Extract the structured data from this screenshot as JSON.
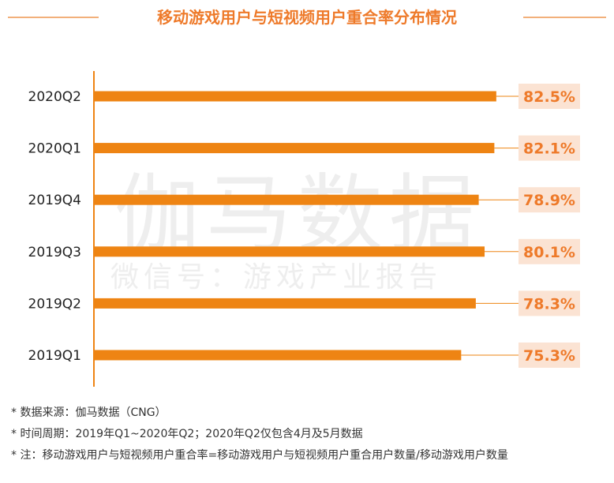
{
  "header": {
    "title": "移动游戏用户与短视频用户重合率分布情况"
  },
  "watermark": {
    "brand": "伽马数据",
    "subtitle": "微信号：游戏产业报告"
  },
  "chart_data": {
    "type": "bar",
    "orientation": "horizontal",
    "categories": [
      "2020Q2",
      "2020Q1",
      "2019Q4",
      "2019Q3",
      "2019Q2",
      "2019Q1"
    ],
    "values": [
      82.5,
      82.1,
      78.9,
      80.1,
      78.3,
      75.3
    ],
    "value_labels": [
      "82.5%",
      "82.1%",
      "78.9%",
      "80.1%",
      "78.3%",
      "75.3%"
    ],
    "title": "移动游戏用户与短视频用户重合率分布情况",
    "xlabel": "",
    "ylabel": "",
    "xlim": [
      0,
      100
    ],
    "grid": false,
    "colors": {
      "bar": "#ee8413",
      "label_bg": "#fbe3d3",
      "label_text": "#ee7a2a",
      "axis": "#ee8413"
    }
  },
  "notes": [
    "*  数据来源：伽马数据（CNG）",
    "*  时间周期：2019年Q1~2020年Q2；2020年Q2仅包含4月及5月数据",
    "*  注：移动游戏用户与短视频用户重合率=移动游戏用户与短视频用户重合用户数量/移动游戏用户数量"
  ]
}
